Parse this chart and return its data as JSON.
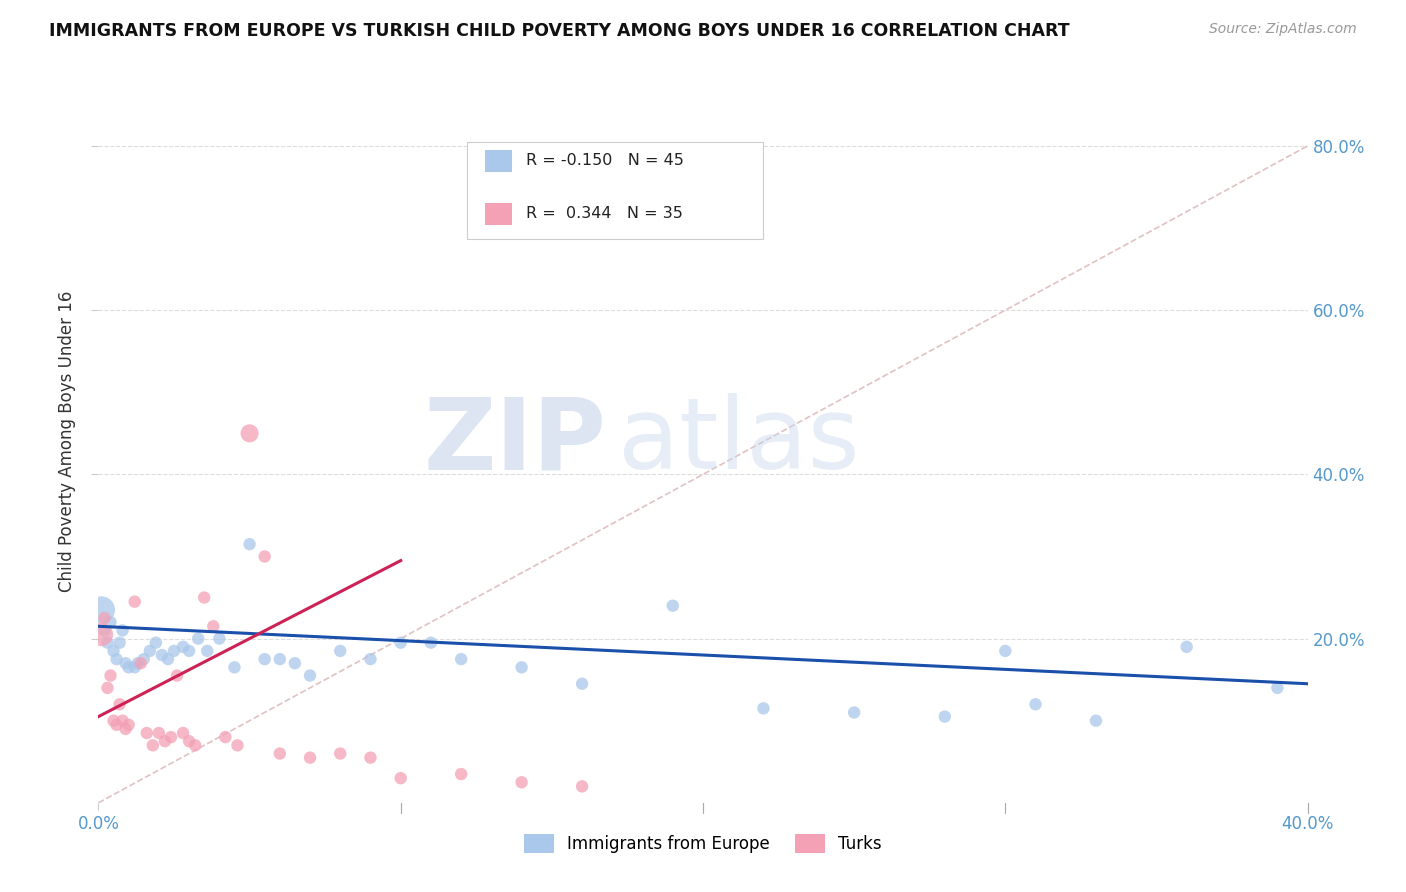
{
  "title": "IMMIGRANTS FROM EUROPE VS TURKISH CHILD POVERTY AMONG BOYS UNDER 16 CORRELATION CHART",
  "source": "Source: ZipAtlas.com",
  "ylabel": "Child Poverty Among Boys Under 16",
  "xlim": [
    0.0,
    0.4
  ],
  "ylim": [
    0.0,
    0.88
  ],
  "blue_R": -0.15,
  "blue_N": 45,
  "pink_R": 0.344,
  "pink_N": 35,
  "blue_color": "#aac8ea",
  "pink_color": "#f4a0b5",
  "blue_line_color": "#1a4faa",
  "pink_line_color": "#cc2255",
  "diag_color": "#ddbbbb",
  "watermark_text": "ZIP",
  "watermark_text2": "atlas",
  "watermark_color": "#d0dff0",
  "watermark_color2": "#c8d4e8",
  "background_color": "#ffffff",
  "grid_color": "#dddddd",
  "blue_scatter_x": [
    0.001,
    0.002,
    0.003,
    0.004,
    0.005,
    0.006,
    0.007,
    0.008,
    0.009,
    0.01,
    0.012,
    0.013,
    0.015,
    0.017,
    0.019,
    0.021,
    0.023,
    0.025,
    0.028,
    0.03,
    0.033,
    0.036,
    0.04,
    0.045,
    0.05,
    0.055,
    0.06,
    0.065,
    0.07,
    0.08,
    0.09,
    0.1,
    0.11,
    0.12,
    0.14,
    0.16,
    0.19,
    0.22,
    0.25,
    0.28,
    0.3,
    0.31,
    0.33,
    0.36,
    0.39
  ],
  "blue_scatter_y": [
    0.235,
    0.21,
    0.195,
    0.22,
    0.185,
    0.175,
    0.195,
    0.21,
    0.17,
    0.165,
    0.165,
    0.17,
    0.175,
    0.185,
    0.195,
    0.18,
    0.175,
    0.185,
    0.19,
    0.185,
    0.2,
    0.185,
    0.2,
    0.165,
    0.315,
    0.175,
    0.175,
    0.17,
    0.155,
    0.185,
    0.175,
    0.195,
    0.195,
    0.175,
    0.165,
    0.145,
    0.24,
    0.115,
    0.11,
    0.105,
    0.185,
    0.12,
    0.1,
    0.19,
    0.14
  ],
  "blue_scatter_sizes": [
    380,
    80,
    80,
    80,
    80,
    80,
    80,
    80,
    80,
    80,
    80,
    80,
    80,
    80,
    80,
    80,
    80,
    80,
    80,
    80,
    80,
    80,
    80,
    80,
    80,
    80,
    80,
    80,
    80,
    80,
    80,
    80,
    80,
    80,
    80,
    80,
    80,
    80,
    80,
    80,
    80,
    80,
    80,
    80,
    80
  ],
  "pink_scatter_x": [
    0.001,
    0.002,
    0.003,
    0.004,
    0.005,
    0.006,
    0.007,
    0.008,
    0.009,
    0.01,
    0.012,
    0.014,
    0.016,
    0.018,
    0.02,
    0.022,
    0.024,
    0.026,
    0.028,
    0.03,
    0.032,
    0.035,
    0.038,
    0.042,
    0.046,
    0.05,
    0.055,
    0.06,
    0.07,
    0.08,
    0.09,
    0.1,
    0.12,
    0.14,
    0.16
  ],
  "pink_scatter_y": [
    0.205,
    0.225,
    0.14,
    0.155,
    0.1,
    0.095,
    0.12,
    0.1,
    0.09,
    0.095,
    0.245,
    0.17,
    0.085,
    0.07,
    0.085,
    0.075,
    0.08,
    0.155,
    0.085,
    0.075,
    0.07,
    0.25,
    0.215,
    0.08,
    0.07,
    0.45,
    0.3,
    0.06,
    0.055,
    0.06,
    0.055,
    0.03,
    0.035,
    0.025,
    0.02
  ],
  "pink_scatter_sizes": [
    280,
    80,
    80,
    80,
    80,
    80,
    80,
    80,
    80,
    80,
    80,
    80,
    80,
    80,
    80,
    80,
    80,
    80,
    80,
    80,
    80,
    80,
    80,
    80,
    80,
    170,
    80,
    80,
    80,
    80,
    80,
    80,
    80,
    80,
    80
  ],
  "blue_line_x": [
    0.0,
    0.4
  ],
  "blue_line_y": [
    0.215,
    0.145
  ],
  "pink_line_x": [
    0.0,
    0.1
  ],
  "pink_line_y": [
    0.105,
    0.295
  ],
  "legend_blue_text": "R = -0.150   N = 45",
  "legend_pink_text": "R =  0.344   N = 35",
  "bottom_legend_blue": "Immigrants from Europe",
  "bottom_legend_pink": "Turks"
}
